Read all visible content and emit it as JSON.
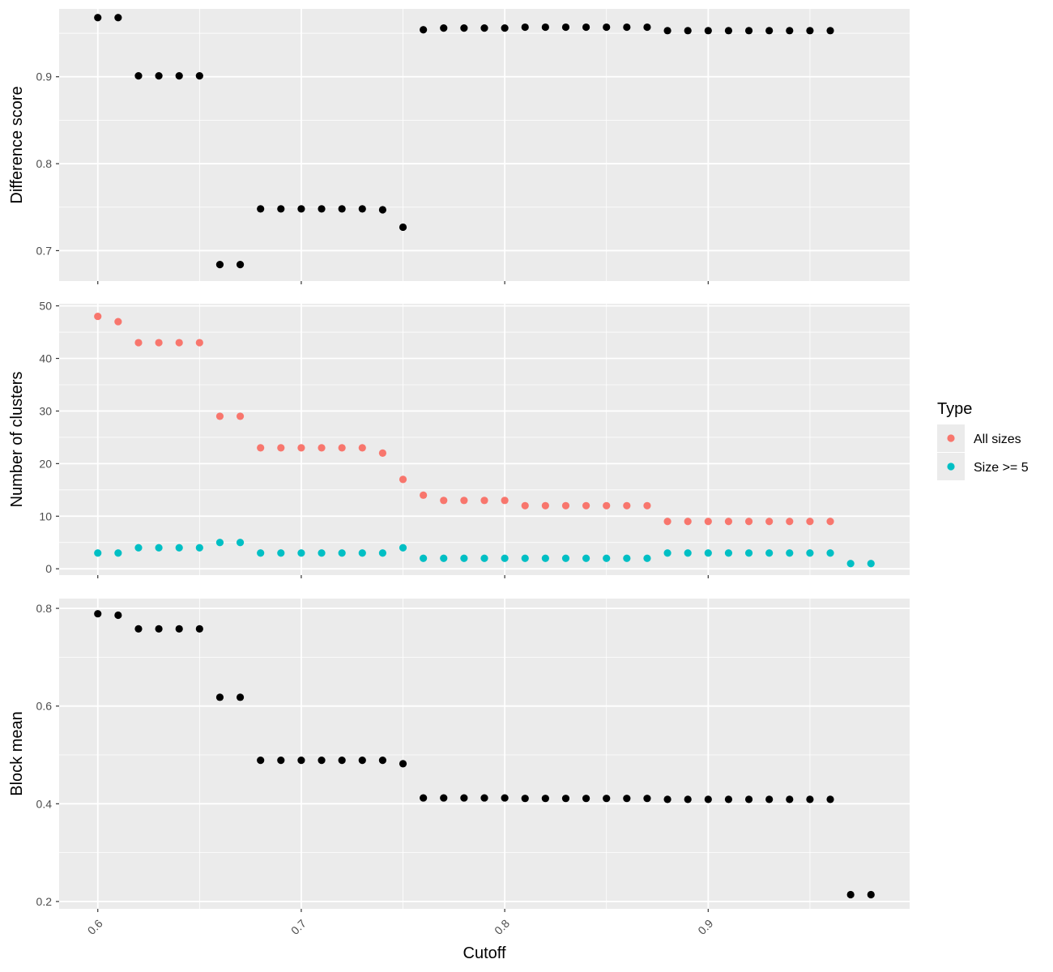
{
  "chart_data": [
    {
      "type": "scatter",
      "ylabel": "Difference score",
      "yticks": [
        0.7,
        0.8,
        0.9
      ],
      "ylim": [
        0.665,
        0.978
      ],
      "series": [
        {
          "color": "#000000",
          "x": [
            0.6,
            0.61,
            0.62,
            0.63,
            0.64,
            0.65,
            0.66,
            0.67,
            0.68,
            0.69,
            0.7,
            0.71,
            0.72,
            0.73,
            0.74,
            0.75,
            0.76,
            0.77,
            0.78,
            0.79,
            0.8,
            0.81,
            0.82,
            0.83,
            0.84,
            0.85,
            0.86,
            0.87,
            0.88,
            0.89,
            0.9,
            0.91,
            0.92,
            0.93,
            0.94,
            0.95,
            0.96
          ],
          "y": [
            0.968,
            0.968,
            0.901,
            0.901,
            0.901,
            0.901,
            0.684,
            0.684,
            0.748,
            0.748,
            0.748,
            0.748,
            0.748,
            0.748,
            0.747,
            0.727,
            0.954,
            0.956,
            0.956,
            0.956,
            0.956,
            0.957,
            0.957,
            0.957,
            0.957,
            0.957,
            0.957,
            0.957,
            0.953,
            0.953,
            0.953,
            0.953,
            0.953,
            0.953,
            0.953,
            0.953,
            0.953
          ]
        }
      ]
    },
    {
      "type": "scatter",
      "ylabel": "Number of clusters",
      "yticks": [
        0,
        10,
        20,
        30,
        40,
        50
      ],
      "ylim": [
        -1.2,
        50.4
      ],
      "series": [
        {
          "name": "All sizes",
          "color": "#F8766D",
          "x": [
            0.6,
            0.61,
            0.62,
            0.63,
            0.64,
            0.65,
            0.66,
            0.67,
            0.68,
            0.69,
            0.7,
            0.71,
            0.72,
            0.73,
            0.74,
            0.75,
            0.76,
            0.77,
            0.78,
            0.79,
            0.8,
            0.81,
            0.82,
            0.83,
            0.84,
            0.85,
            0.86,
            0.87,
            0.88,
            0.89,
            0.9,
            0.91,
            0.92,
            0.93,
            0.94,
            0.95,
            0.96
          ],
          "y": [
            48,
            47,
            43,
            43,
            43,
            43,
            29,
            29,
            23,
            23,
            23,
            23,
            23,
            23,
            22,
            17,
            14,
            13,
            13,
            13,
            13,
            12,
            12,
            12,
            12,
            12,
            12,
            12,
            9,
            9,
            9,
            9,
            9,
            9,
            9,
            9,
            9
          ]
        },
        {
          "name": "Size >= 5",
          "color": "#00BFC4",
          "x": [
            0.6,
            0.61,
            0.62,
            0.63,
            0.64,
            0.65,
            0.66,
            0.67,
            0.68,
            0.69,
            0.7,
            0.71,
            0.72,
            0.73,
            0.74,
            0.75,
            0.76,
            0.77,
            0.78,
            0.79,
            0.8,
            0.81,
            0.82,
            0.83,
            0.84,
            0.85,
            0.86,
            0.87,
            0.88,
            0.89,
            0.9,
            0.91,
            0.92,
            0.93,
            0.94,
            0.95,
            0.96,
            0.97,
            0.98
          ],
          "y": [
            3,
            3,
            4,
            4,
            4,
            4,
            5,
            5,
            3,
            3,
            3,
            3,
            3,
            3,
            3,
            4,
            2,
            2,
            2,
            2,
            2,
            2,
            2,
            2,
            2,
            2,
            2,
            2,
            3,
            3,
            3,
            3,
            3,
            3,
            3,
            3,
            3,
            1,
            1
          ]
        }
      ]
    },
    {
      "type": "scatter",
      "ylabel": "Block mean",
      "xlabel": "Cutoff",
      "yticks": [
        0.2,
        0.4,
        0.6,
        0.8
      ],
      "ylim": [
        0.185,
        0.82
      ],
      "series": [
        {
          "color": "#000000",
          "x": [
            0.6,
            0.61,
            0.62,
            0.63,
            0.64,
            0.65,
            0.66,
            0.67,
            0.68,
            0.69,
            0.7,
            0.71,
            0.72,
            0.73,
            0.74,
            0.75,
            0.76,
            0.77,
            0.78,
            0.79,
            0.8,
            0.81,
            0.82,
            0.83,
            0.84,
            0.85,
            0.86,
            0.87,
            0.88,
            0.89,
            0.9,
            0.91,
            0.92,
            0.93,
            0.94,
            0.95,
            0.96,
            0.97,
            0.98
          ],
          "y": [
            0.789,
            0.786,
            0.758,
            0.758,
            0.758,
            0.758,
            0.618,
            0.618,
            0.489,
            0.489,
            0.489,
            0.489,
            0.489,
            0.489,
            0.489,
            0.482,
            0.412,
            0.412,
            0.412,
            0.412,
            0.412,
            0.411,
            0.411,
            0.411,
            0.411,
            0.411,
            0.411,
            0.411,
            0.409,
            0.409,
            0.409,
            0.409,
            0.409,
            0.409,
            0.409,
            0.409,
            0.409,
            0.214,
            0.214
          ]
        }
      ]
    }
  ],
  "x_axis": {
    "title": "Cutoff",
    "xlim": [
      0.581,
      0.999
    ],
    "ticks": [
      0.6,
      0.7,
      0.8,
      0.9
    ],
    "tick_labels": [
      "0.6",
      "0.7",
      "0.8",
      "0.9"
    ]
  },
  "legend": {
    "title": "Type",
    "position": "right",
    "items": [
      {
        "label": "All sizes",
        "color": "#F8766D"
      },
      {
        "label": "Size >= 5",
        "color": "#00BFC4"
      }
    ]
  },
  "style": {
    "panel_background": "#EBEBEB",
    "grid_color": "#FFFFFF"
  }
}
